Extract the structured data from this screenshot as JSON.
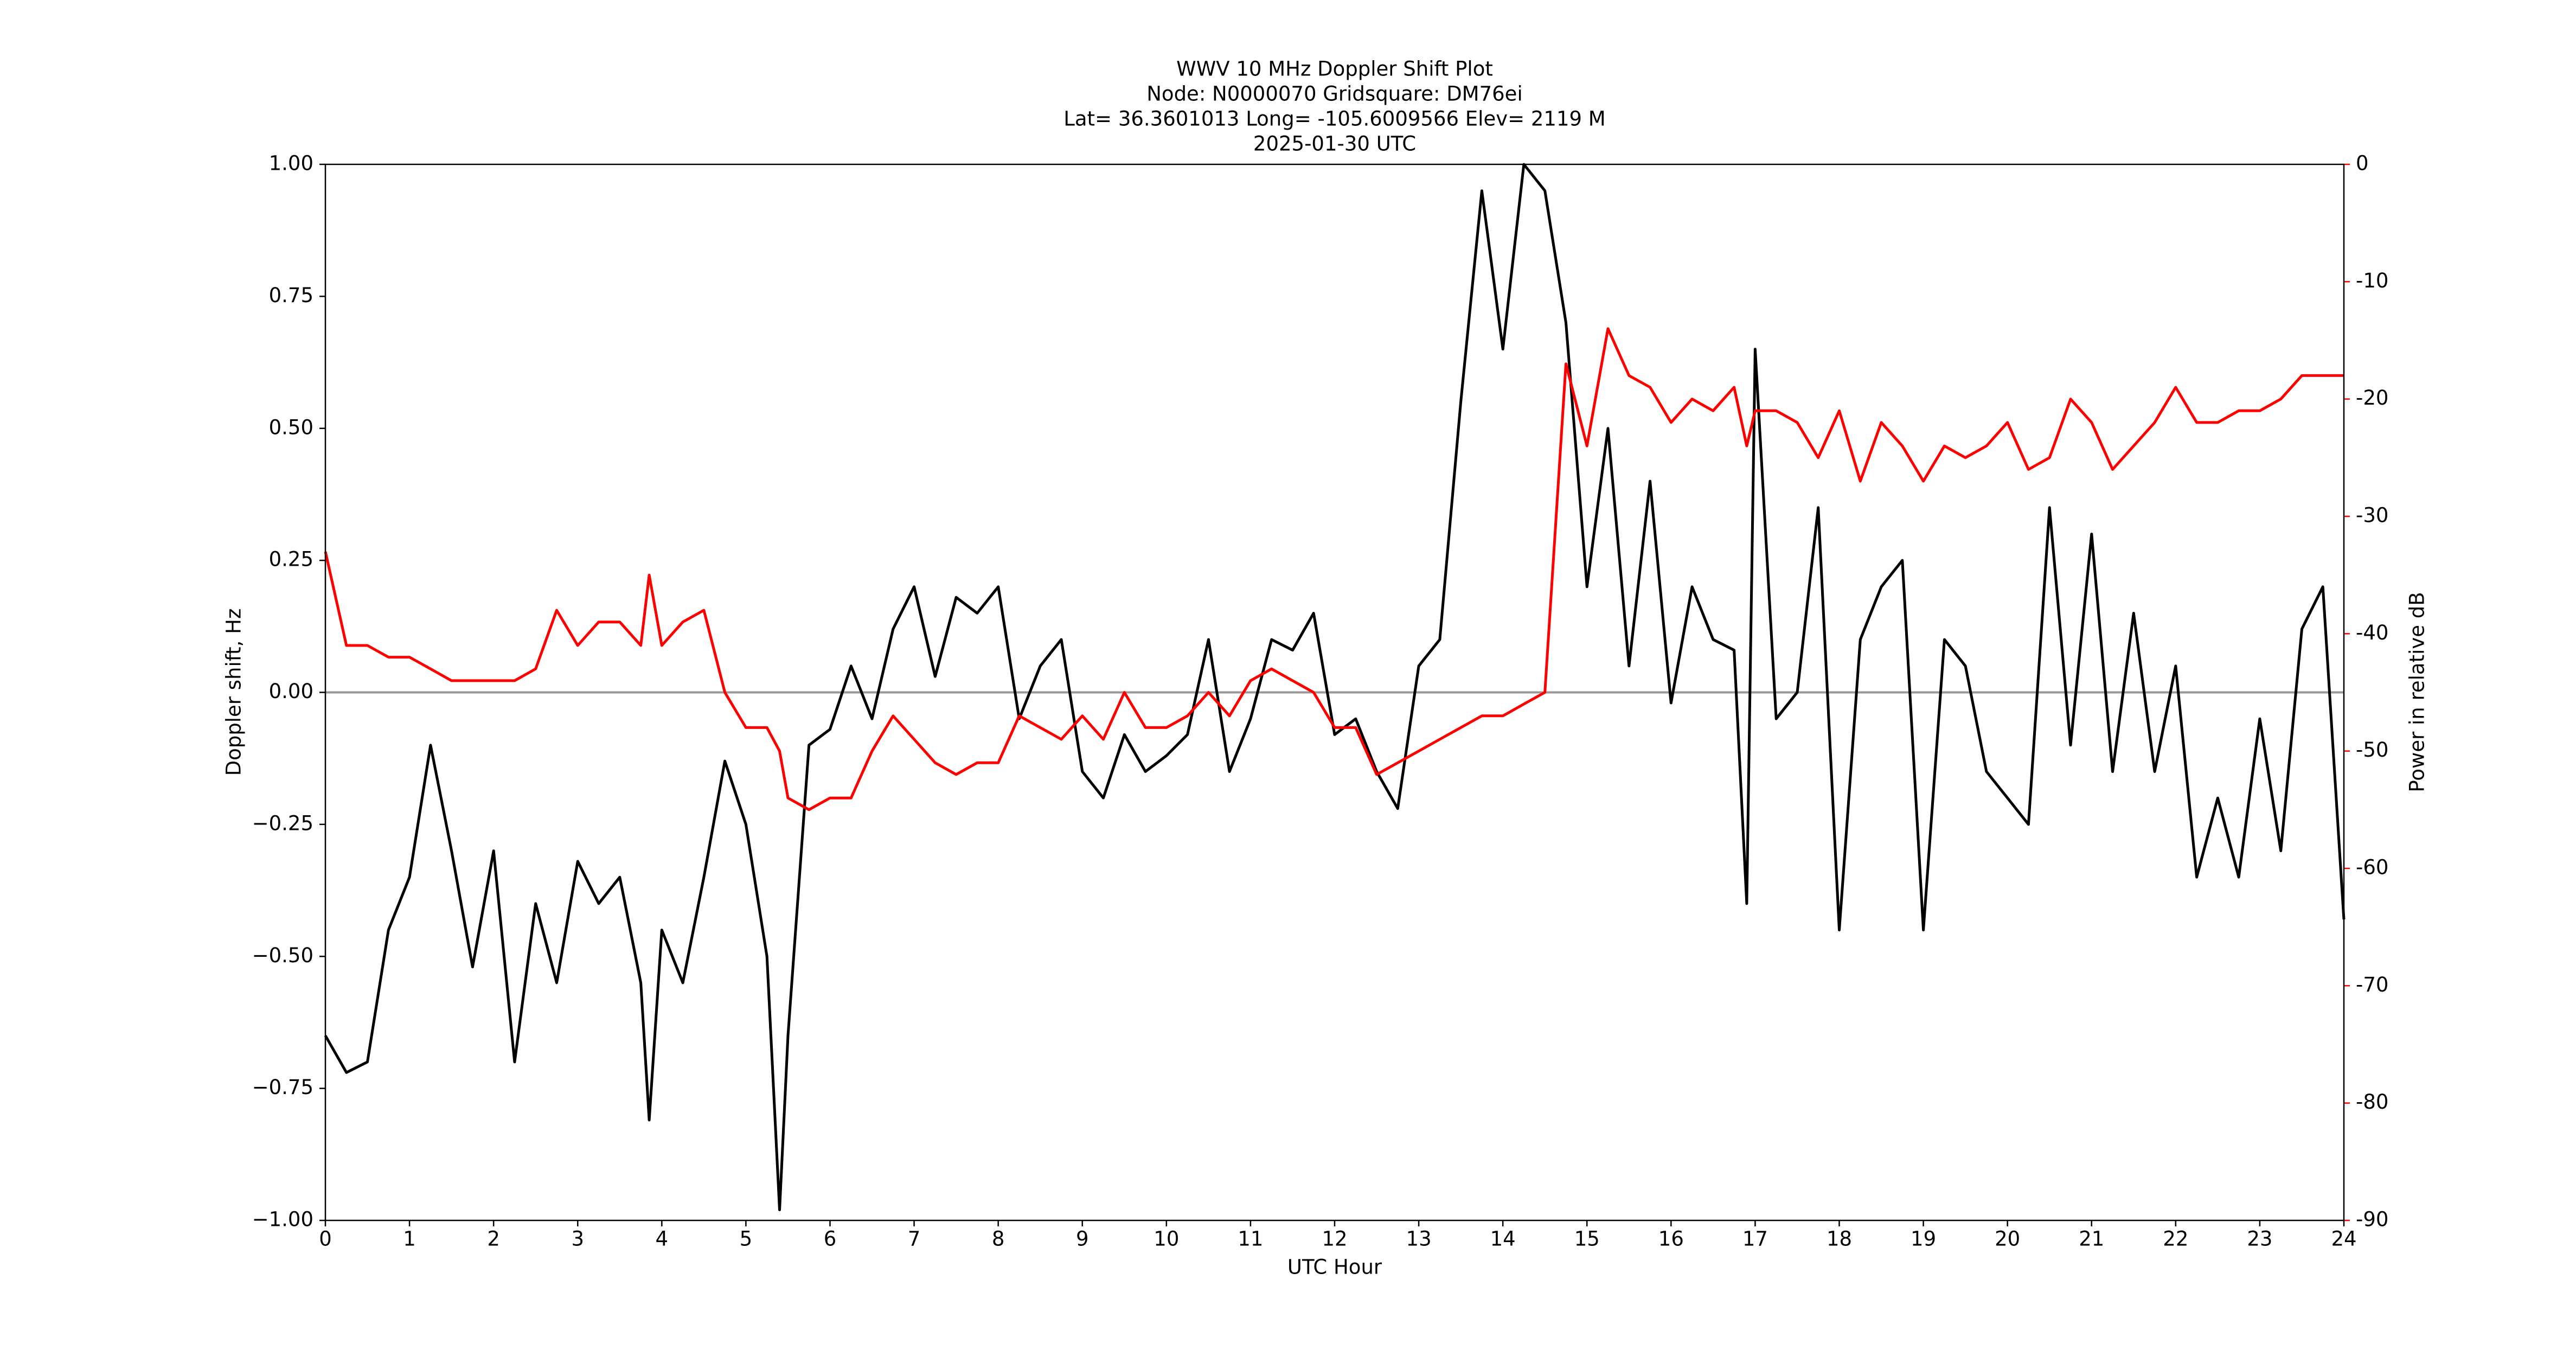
{
  "chart_data": {
    "type": "line",
    "title": "WWV 10 MHz Doppler Shift Plot",
    "subtitles": [
      "Node:  N0000070     Gridsquare:  DM76ei",
      "Lat= 36.3601013    Long= -105.6009566    Elev= 2119 M",
      "2025-01-30  UTC"
    ],
    "xlabel": "UTC Hour",
    "ylabel": "Doppler shift, Hz",
    "y2label": "Power in relative dB",
    "y2color": "#ff0000",
    "x": [
      0,
      0.25,
      0.5,
      0.75,
      1,
      1.25,
      1.5,
      1.75,
      2,
      2.25,
      2.5,
      2.75,
      3,
      3.25,
      3.5,
      3.75,
      3.85,
      4,
      4.25,
      4.5,
      4.75,
      5,
      5.25,
      5.4,
      5.5,
      5.75,
      6,
      6.25,
      6.5,
      6.75,
      7,
      7.25,
      7.5,
      7.75,
      8,
      8.25,
      8.5,
      8.75,
      9,
      9.25,
      9.5,
      9.75,
      10,
      10.25,
      10.5,
      10.75,
      11,
      11.25,
      11.5,
      11.75,
      12,
      12.25,
      12.5,
      12.75,
      13,
      13.25,
      13.5,
      13.75,
      14,
      14.25,
      14.5,
      14.75,
      15,
      15.25,
      15.5,
      15.75,
      16,
      16.25,
      16.5,
      16.75,
      16.9,
      17,
      17.25,
      17.5,
      17.75,
      18,
      18.25,
      18.5,
      18.75,
      19,
      19.25,
      19.5,
      19.75,
      20,
      20.25,
      20.5,
      20.75,
      21,
      21.25,
      21.5,
      21.75,
      22,
      22.25,
      22.5,
      22.75,
      23,
      23.25,
      23.5,
      23.75,
      24
    ],
    "series": [
      {
        "color": "#000000",
        "values": [
          -0.65,
          -0.72,
          -0.7,
          -0.45,
          -0.35,
          -0.1,
          -0.3,
          -0.52,
          -0.3,
          -0.7,
          -0.4,
          -0.55,
          -0.32,
          -0.4,
          -0.35,
          -0.55,
          -0.81,
          -0.45,
          -0.55,
          -0.35,
          -0.13,
          -0.25,
          -0.5,
          -0.98,
          -0.65,
          -0.1,
          -0.07,
          0.05,
          -0.05,
          0.12,
          0.2,
          0.03,
          0.18,
          0.15,
          0.2,
          -0.05,
          0.05,
          0.1,
          -0.15,
          -0.2,
          -0.08,
          -0.15,
          -0.12,
          -0.08,
          0.1,
          -0.15,
          -0.05,
          0.1,
          0.08,
          0.15,
          -0.08,
          -0.05,
          -0.15,
          -0.22,
          0.05,
          0.1,
          0.55,
          0.95,
          0.65,
          1.0,
          0.95,
          0.7,
          0.2,
          0.5,
          0.05,
          0.4,
          -0.02,
          0.2,
          0.1,
          0.08,
          -0.4,
          0.65,
          -0.05,
          0.0,
          0.35,
          -0.45,
          0.1,
          0.2,
          0.25,
          -0.45,
          0.1,
          0.05,
          -0.15,
          -0.2,
          -0.25,
          0.35,
          -0.1,
          0.3,
          -0.15,
          0.15,
          -0.15,
          0.05,
          -0.35,
          -0.2,
          -0.35,
          -0.05,
          -0.3,
          0.12,
          0.2,
          -0.43
        ]
      },
      {
        "color": "#ff0000",
        "axis": "y2",
        "values": [
          -33,
          -41,
          -41,
          -42,
          -42,
          -43,
          -44,
          -44,
          -44,
          -44,
          -43,
          -38,
          -41,
          -39,
          -39,
          -41,
          -35,
          -41,
          -39,
          -38,
          -45,
          -48,
          -48,
          -50,
          -54,
          -55,
          -54,
          -54,
          -50,
          -47,
          -49,
          -51,
          -52,
          -51,
          -51,
          -47,
          -48,
          -49,
          -47,
          -49,
          -45,
          -48,
          -48,
          -47,
          -45,
          -47,
          -44,
          -43,
          -44,
          -45,
          -48,
          -48,
          -52,
          -51,
          -50,
          -49,
          -48,
          -47,
          -47,
          -46,
          -45,
          -17,
          -24,
          -14,
          -18,
          -19,
          -22,
          -20,
          -21,
          -19,
          -24,
          -21,
          -21,
          -22,
          -25,
          -21,
          -27,
          -22,
          -24,
          -27,
          -24,
          -25,
          -24,
          -22,
          -26,
          -25,
          -20,
          -22,
          -26,
          -24,
          -22,
          -19,
          -22,
          -22,
          -21,
          -21,
          -20,
          -18,
          -18,
          -18
        ]
      }
    ],
    "hline": 0,
    "hline_color": "#999999",
    "xlim": [
      0,
      24
    ],
    "xticks": [
      0,
      1,
      2,
      3,
      4,
      5,
      6,
      7,
      8,
      9,
      10,
      11,
      12,
      13,
      14,
      15,
      16,
      17,
      18,
      19,
      20,
      21,
      22,
      23,
      24
    ],
    "ylim": [
      -1,
      1
    ],
    "yticks": [
      {
        "value": -1,
        "label": "−1.00"
      },
      {
        "value": -0.75,
        "label": "−0.75"
      },
      {
        "value": -0.5,
        "label": "−0.50"
      },
      {
        "value": -0.25,
        "label": "−0.25"
      },
      {
        "value": 0,
        "label": "0.00"
      },
      {
        "value": 0.25,
        "label": "0.25"
      },
      {
        "value": 0.5,
        "label": "0.50"
      },
      {
        "value": 0.75,
        "label": "0.75"
      },
      {
        "value": 1,
        "label": "1.00"
      }
    ],
    "y2lim": [
      -90,
      0
    ],
    "y2ticks": [
      -90,
      -80,
      -70,
      -60,
      -50,
      -40,
      -30,
      -20,
      -10,
      0
    ]
  }
}
